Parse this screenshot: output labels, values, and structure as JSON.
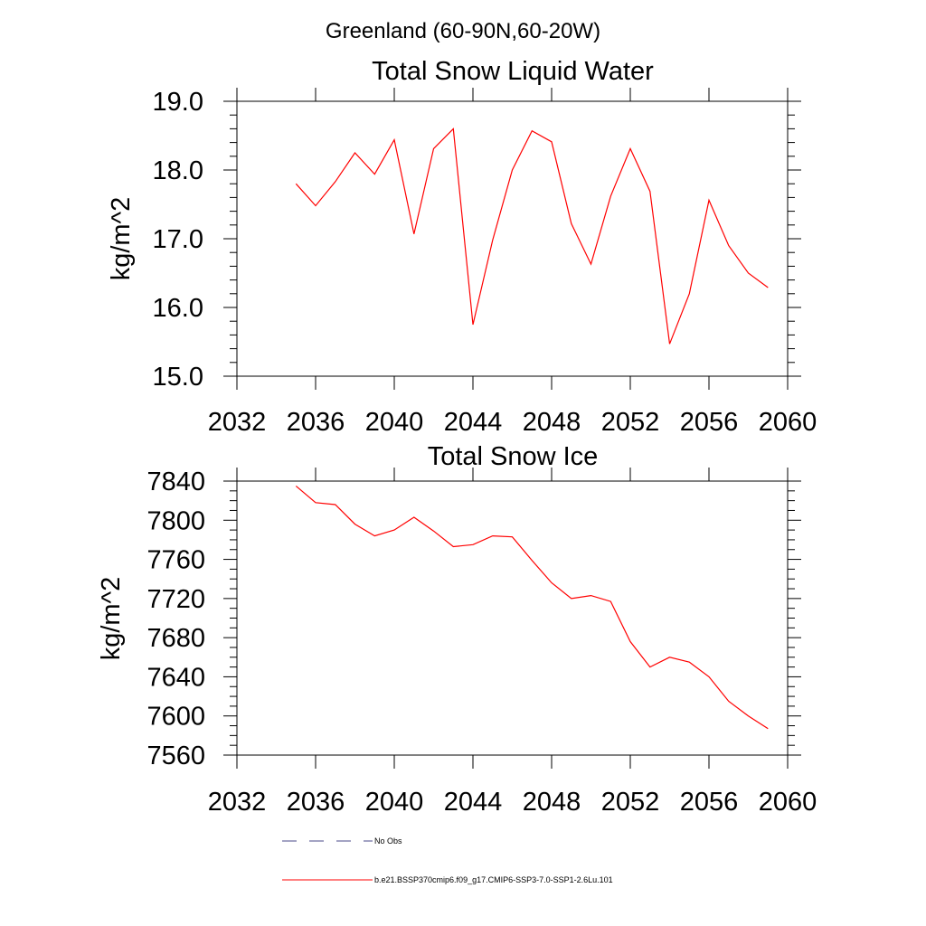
{
  "figure": {
    "title": "Greenland (60-90N,60-20W)",
    "legend": [
      {
        "label": "No Obs",
        "style": "dashed",
        "color": "#4a4a8a"
      },
      {
        "label": "b.e21.BSSP370cmip6.f09_g17.CMIP6-SSP3-7.0-SSP1-2.6Lu.101",
        "style": "solid",
        "color": "#ff0000"
      }
    ]
  },
  "chart_data": [
    {
      "type": "line",
      "title": "Total Snow Liquid Water",
      "ylabel": "kg/m^2",
      "xlabel": "",
      "xlim": [
        2032,
        2060
      ],
      "ylim": [
        15.0,
        19.0
      ],
      "xticks": [
        "2032",
        "2036",
        "2040",
        "2044",
        "2048",
        "2052",
        "2056",
        "2060"
      ],
      "yticks": [
        "15.0",
        "16.0",
        "17.0",
        "18.0",
        "19.0"
      ],
      "grid": false,
      "series": [
        {
          "color": "#ff0000",
          "x": [
            2035,
            2036,
            2037,
            2038,
            2039,
            2040,
            2041,
            2042,
            2043,
            2044,
            2045,
            2046,
            2047,
            2048,
            2049,
            2050,
            2051,
            2052,
            2053,
            2054,
            2055,
            2056,
            2057,
            2058,
            2059
          ],
          "y": [
            17.8,
            17.48,
            17.83,
            18.25,
            17.94,
            18.44,
            17.07,
            18.31,
            18.6,
            15.75,
            16.98,
            18.0,
            18.57,
            18.41,
            17.22,
            16.63,
            17.62,
            18.31,
            17.69,
            15.47,
            16.2,
            17.56,
            16.9,
            16.5,
            16.29
          ]
        }
      ]
    },
    {
      "type": "line",
      "title": "Total Snow Ice",
      "ylabel": "kg/m^2",
      "xlabel": "",
      "xlim": [
        2032,
        2060
      ],
      "ylim": [
        7560,
        7840
      ],
      "xticks": [
        "2032",
        "2036",
        "2040",
        "2044",
        "2048",
        "2052",
        "2056",
        "2060"
      ],
      "yticks": [
        "7560",
        "7600",
        "7640",
        "7680",
        "7720",
        "7760",
        "7800",
        "7840"
      ],
      "grid": false,
      "series": [
        {
          "color": "#ff0000",
          "x": [
            2035,
            2036,
            2037,
            2038,
            2039,
            2040,
            2041,
            2042,
            2043,
            2044,
            2045,
            2046,
            2047,
            2048,
            2049,
            2050,
            2051,
            2052,
            2053,
            2054,
            2055,
            2056,
            2057,
            2058,
            2059
          ],
          "y": [
            7835,
            7818,
            7816,
            7796,
            7784,
            7790,
            7803,
            7789,
            7773,
            7775,
            7784,
            7783,
            7759,
            7736,
            7720,
            7723,
            7717,
            7676,
            7650,
            7660,
            7655,
            7640,
            7615,
            7600,
            7587
          ]
        }
      ]
    }
  ]
}
